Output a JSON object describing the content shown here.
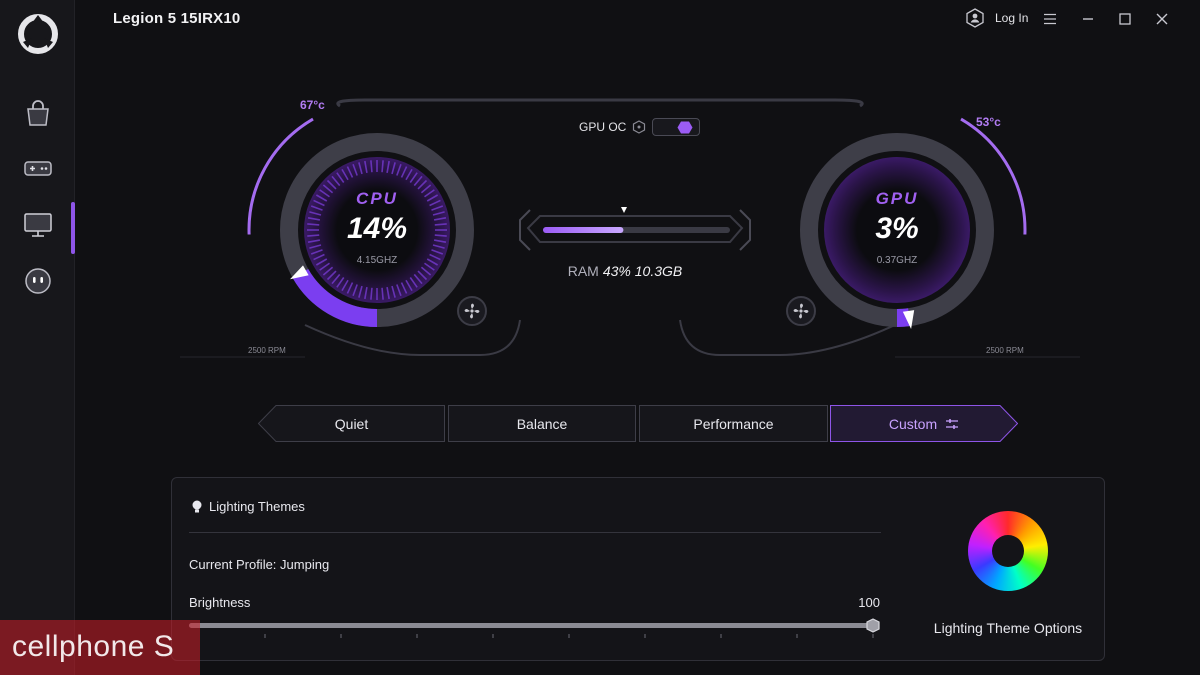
{
  "app": {
    "title": "Legion 5 15IRX10"
  },
  "titlebar": {
    "login_label": "Log In"
  },
  "sidebar": {
    "items": [
      {
        "name": "shop",
        "icon": "shopping-bag-icon"
      },
      {
        "name": "games",
        "icon": "gamepad-icon"
      },
      {
        "name": "device",
        "icon": "monitor-icon",
        "active": true
      },
      {
        "name": "assistant",
        "icon": "robot-face-icon"
      }
    ]
  },
  "dashboard": {
    "cpu": {
      "name": "CPU",
      "usage": "14%",
      "usage_value": 14,
      "freq": "4.15GHZ",
      "temp": "67°c",
      "fan_rpm": "2500 RPM"
    },
    "gpu": {
      "name": "GPU",
      "usage": "3%",
      "usage_value": 3,
      "freq": "0.37GHZ",
      "temp": "53°c",
      "fan_rpm": "2500 RPM"
    },
    "gpu_oc": {
      "label": "GPU OC",
      "enabled": true
    },
    "ram": {
      "label": "RAM",
      "value": "43% 10.3GB",
      "usage_value": 43
    }
  },
  "modes": {
    "items": [
      "Quiet",
      "Balance",
      "Performance",
      "Custom"
    ],
    "selected": "Custom"
  },
  "lighting": {
    "title": "Lighting Themes",
    "current_profile": "Current Profile: Jumping",
    "brightness_label": "Brightness",
    "brightness_value": "100",
    "brightness_level": 100,
    "options_label": "Lighting Theme Options"
  },
  "watermark": {
    "text": "cellphone S"
  },
  "colors": {
    "accent": "#8e55e8",
    "background": "#101013",
    "panel": "#141418"
  }
}
